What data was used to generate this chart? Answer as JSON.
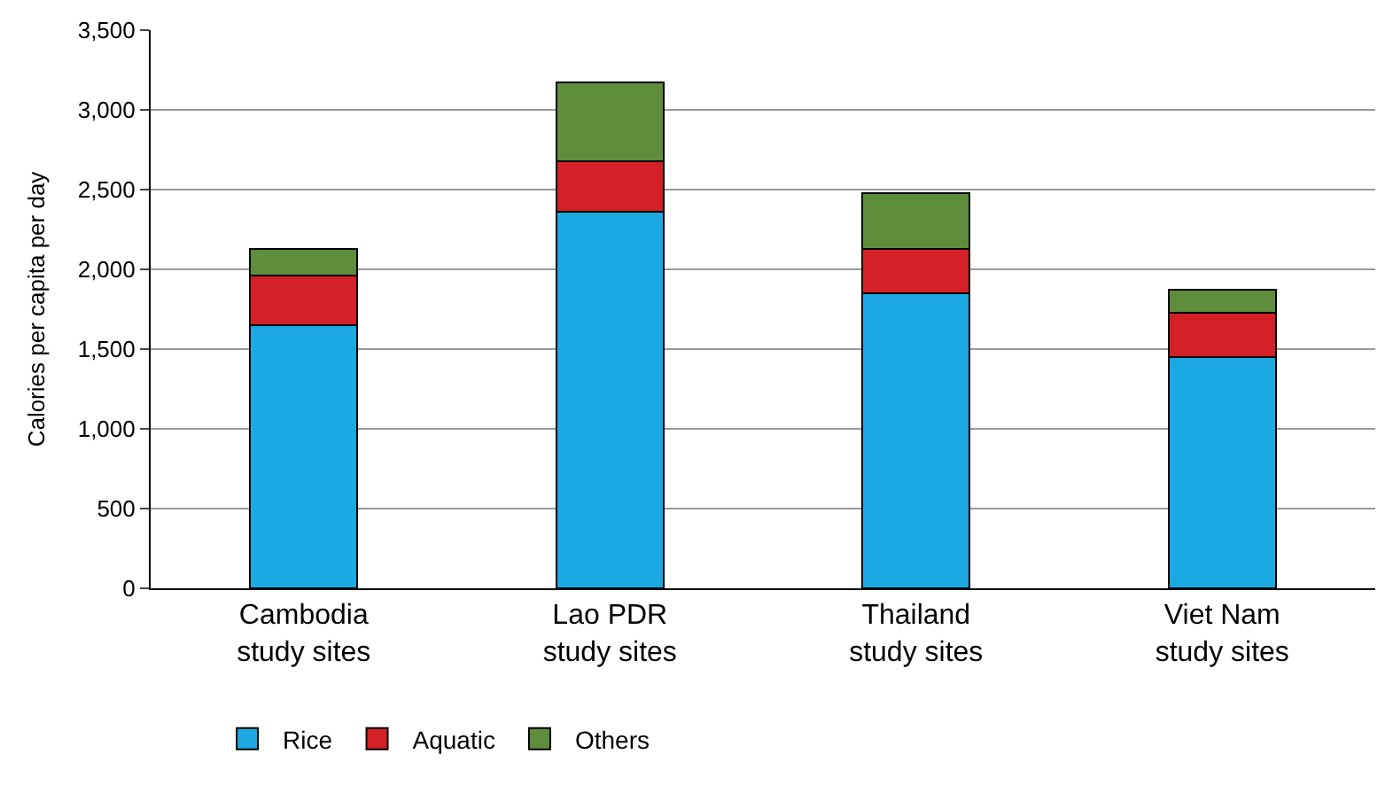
{
  "chart_data": {
    "type": "bar",
    "stacked": true,
    "ylabel": "Calories per capita per day",
    "categories": [
      "Cambodia study sites",
      "Lao PDR study sites",
      "Thailand study sites",
      "Viet Nam study sites"
    ],
    "series": [
      {
        "name": "Rice",
        "color": "#1ca9e1",
        "values": [
          1650,
          2360,
          1850,
          1450
        ]
      },
      {
        "name": "Aquatic",
        "color": "#d42027",
        "values": [
          310,
          320,
          280,
          280
        ]
      },
      {
        "name": "Others",
        "color": "#5e8e3c",
        "values": [
          170,
          490,
          350,
          140
        ]
      }
    ],
    "ylim": [
      0,
      3500
    ],
    "yticks": [
      0,
      500,
      {
        "value": 1000,
        "label": "1,000"
      },
      {
        "value": 1500,
        "label": "1,500"
      },
      {
        "value": 2000,
        "label": "2,000"
      },
      {
        "value": 2500,
        "label": "2,500"
      },
      {
        "value": 3000,
        "label": "3,000"
      },
      {
        "value": 3500,
        "label": "3,500"
      }
    ],
    "grid": "y",
    "legend": "bottom"
  }
}
